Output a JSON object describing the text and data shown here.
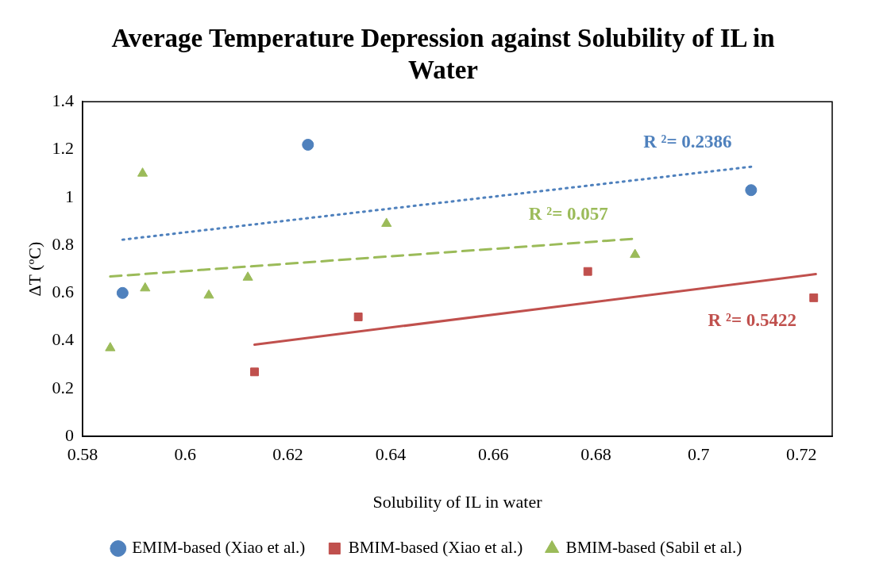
{
  "chart_data": {
    "type": "scatter",
    "title": "Average Temperature Depression against Solubility of IL in Water",
    "xlabel": "Solubility of IL in water",
    "ylabel": "ΔT (ºC)",
    "xlim": [
      0.58,
      0.726
    ],
    "xticks": [
      0.58,
      0.6,
      0.62,
      0.64,
      0.66,
      0.68,
      0.7,
      0.72
    ],
    "ylim": [
      0,
      1.4
    ],
    "yticks": [
      0,
      0.2,
      0.4,
      0.6,
      0.8,
      1,
      1.2,
      1.4
    ],
    "grid": false,
    "legend": "bottom",
    "series": [
      {
        "name": "EMIM-based (Xiao et al.)",
        "type": "scatter",
        "marker": "circle",
        "color": "#4f81bd",
        "x": [
          0.5878,
          0.6239,
          0.7102
        ],
        "values": [
          0.6,
          1.22,
          1.03
        ]
      },
      {
        "name": "BMIM-based (Xiao et al.)",
        "type": "scatter",
        "marker": "square",
        "color": "#c0504d",
        "x": [
          0.6135,
          0.6337,
          0.6784,
          0.7224
        ],
        "values": [
          0.27,
          0.5,
          0.69,
          0.58
        ]
      },
      {
        "name": "BMIM-based (Sabil et al.)",
        "type": "scatter",
        "marker": "triangle",
        "color": "#9bbb59",
        "x": [
          0.5854,
          0.5917,
          0.5922,
          0.6046,
          0.6122,
          0.6392,
          0.6876
        ],
        "values": [
          0.37,
          1.1,
          0.62,
          0.59,
          0.665,
          0.89,
          0.76
        ]
      },
      {
        "type": "line",
        "line_style": "dotted",
        "marker": "none",
        "color": "#4f81bd",
        "x": [
          0.5878,
          0.7102
        ],
        "values": [
          0.823,
          1.128
        ]
      },
      {
        "type": "line",
        "line_style": "dashed",
        "marker": "none",
        "color": "#9bbb59",
        "x": [
          0.5854,
          0.687
        ],
        "values": [
          0.669,
          0.826
        ]
      },
      {
        "type": "line",
        "line_style": "solid",
        "marker": "none",
        "color": "#c0504d",
        "x": [
          0.6135,
          0.7228
        ],
        "values": [
          0.384,
          0.679
        ]
      }
    ],
    "annotations": [
      "R ²= 0.2386",
      "R ²= 0.057",
      "R ²= 0.5422"
    ]
  }
}
